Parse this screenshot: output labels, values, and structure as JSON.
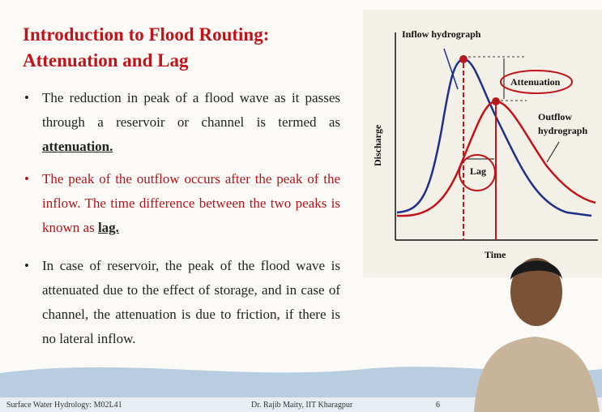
{
  "title": [
    "Introduction to Flood Routing:",
    "Attenuation and Lag"
  ],
  "bullets": [
    {
      "text": "The reduction in peak of a flood wave as it passes through a reservoir or channel is termed as ",
      "emphasis": "attenuation."
    },
    {
      "text": "The peak of the outflow occurs after the peak of the inflow. The time difference between the two peaks is known as ",
      "emphasis": "lag."
    },
    {
      "text": "In case of reservoir, the peak of the flood wave is attenuated due to the effect of storage, and in case of channel, the attenuation is due to friction, if there is no lateral inflow.",
      "emphasis": null
    }
  ],
  "diagram": {
    "inflow_label": "Inflow hydrograph",
    "attenuation_label": "Attenuation",
    "outflow_label": [
      "Outflow",
      "hydrograph"
    ],
    "lag_label": "Lag",
    "y_axis": "Discharge",
    "x_axis": "Time"
  },
  "footer": {
    "course": "Surface Water Hydrology: M02L41",
    "author": "Dr. Rajib Maity, IIT Kharagpur",
    "page": "6"
  }
}
